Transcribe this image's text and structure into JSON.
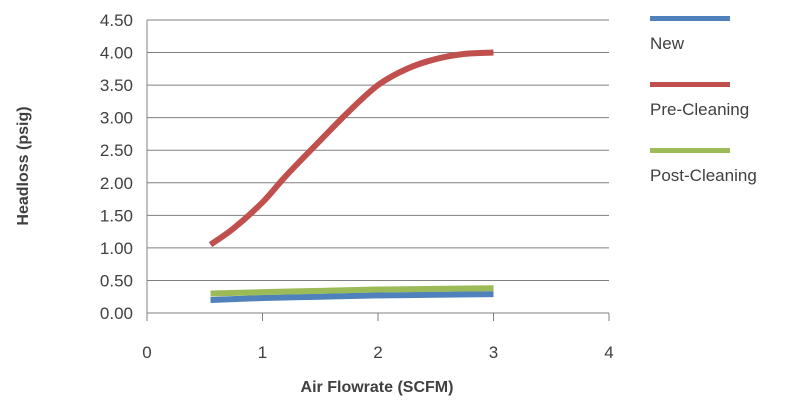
{
  "chart_data": {
    "type": "line",
    "xlabel": "Air Flowrate (SCFM)",
    "ylabel": "Headloss (psig)",
    "xlim": [
      0,
      4
    ],
    "ylim": [
      0,
      4.5
    ],
    "xticks": [
      "0",
      "1",
      "2",
      "3",
      "4"
    ],
    "yticks": [
      "0.00",
      "0.50",
      "1.00",
      "1.50",
      "2.00",
      "2.50",
      "3.00",
      "3.50",
      "4.00",
      "4.50"
    ],
    "grid": "horizontal",
    "legend_position": "right",
    "series": [
      {
        "name": "New",
        "color": "#4f81bd",
        "x": [
          0.55,
          1.0,
          1.5,
          2.0,
          2.5,
          3.0
        ],
        "y": [
          0.2,
          0.23,
          0.25,
          0.27,
          0.28,
          0.29
        ]
      },
      {
        "name": "Pre-Cleaning",
        "color": "#c0504d",
        "x": [
          0.55,
          0.75,
          1.0,
          1.2,
          1.5,
          1.75,
          2.0,
          2.25,
          2.5,
          2.75,
          3.0
        ],
        "y": [
          1.05,
          1.3,
          1.7,
          2.1,
          2.65,
          3.1,
          3.5,
          3.75,
          3.9,
          3.98,
          4.0
        ]
      },
      {
        "name": "Post-Cleaning",
        "color": "#9bbb59",
        "x": [
          0.55,
          1.0,
          1.5,
          2.0,
          2.5,
          3.0
        ],
        "y": [
          0.3,
          0.32,
          0.34,
          0.36,
          0.37,
          0.38
        ]
      }
    ]
  }
}
